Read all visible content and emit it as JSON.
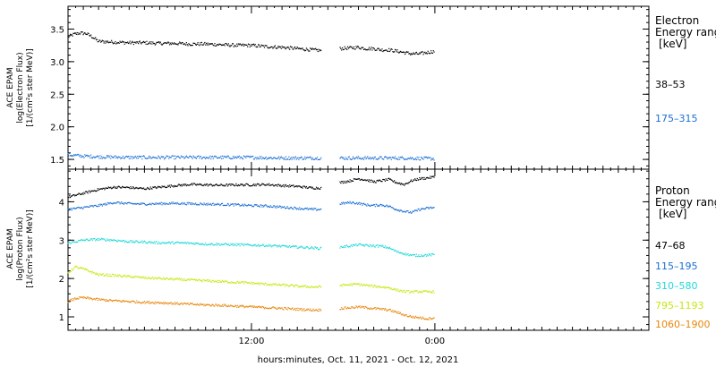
{
  "chart_data": [
    {
      "type": "scatter",
      "panel": "electron",
      "ylabel_lines": [
        "ACE EPAM",
        "log(Electron Flux)",
        "[1/(cm²s ster MeV)]"
      ],
      "legend_title_lines": [
        "Electron",
        "Energy ranges",
        "[keV]"
      ],
      "ylim": [
        1.35,
        3.85
      ],
      "yticks": [
        1.5,
        2.0,
        2.5,
        3.0,
        3.5
      ],
      "ytick_labels": [
        "1.5",
        "2.0",
        "2.5",
        "3.0",
        "3.5"
      ],
      "gap_hours": [
        16.6,
        17.8
      ],
      "series": [
        {
          "name": "38–53",
          "color": "#000000",
          "x": [
            0.0,
            0.4,
            0.8,
            1.2,
            1.6,
            2.0,
            3.0,
            4.0,
            5.0,
            6.0,
            7.0,
            8.0,
            9.0,
            10.0,
            11.0,
            12.0,
            13.0,
            14.0,
            15.0,
            16.0,
            16.6,
            17.8,
            18.5,
            19.0,
            19.5,
            20.0,
            20.5,
            21.0,
            21.5,
            22.0,
            22.5,
            23.0,
            23.5,
            24.0
          ],
          "y": [
            3.38,
            3.42,
            3.44,
            3.43,
            3.38,
            3.31,
            3.3,
            3.29,
            3.29,
            3.28,
            3.28,
            3.27,
            3.27,
            3.26,
            3.25,
            3.25,
            3.23,
            3.22,
            3.2,
            3.18,
            3.17,
            3.2,
            3.21,
            3.22,
            3.2,
            3.2,
            3.18,
            3.18,
            3.16,
            3.14,
            3.12,
            3.12,
            3.14,
            3.16
          ]
        },
        {
          "name": "175–315",
          "color": "#1a6fd4",
          "x": [
            0.0,
            1.0,
            2.0,
            4.0,
            6.0,
            8.0,
            10.0,
            12.0,
            14.0,
            16.0,
            16.6,
            17.8,
            20.0,
            22.0,
            24.0
          ],
          "y": [
            1.57,
            1.55,
            1.54,
            1.53,
            1.53,
            1.53,
            1.53,
            1.53,
            1.52,
            1.52,
            1.52,
            1.52,
            1.52,
            1.52,
            1.51
          ]
        }
      ]
    },
    {
      "type": "scatter",
      "panel": "proton",
      "ylabel_lines": [
        "ACE EPAM",
        "log(Proton Flux)",
        "[1/(cm²s ster MeV)]"
      ],
      "legend_title_lines": [
        "Proton",
        "Energy ranges",
        "[keV]"
      ],
      "ylim": [
        0.65,
        4.85
      ],
      "yticks": [
        1,
        2,
        3,
        4
      ],
      "ytick_labels": [
        "1",
        "2",
        "3",
        "4"
      ],
      "gap_hours": [
        16.6,
        17.8
      ],
      "series": [
        {
          "name": "47–68",
          "color": "#000000",
          "x": [
            0.0,
            1.0,
            2.0,
            3.0,
            4.0,
            5.0,
            6.0,
            7.0,
            8.0,
            9.0,
            10.0,
            11.0,
            12.0,
            13.0,
            14.0,
            15.0,
            16.0,
            16.6,
            17.8,
            18.5,
            19.0,
            19.5,
            20.0,
            20.5,
            21.0,
            21.5,
            22.0,
            22.5,
            23.0,
            23.5,
            24.0
          ],
          "y": [
            4.12,
            4.22,
            4.32,
            4.38,
            4.37,
            4.34,
            4.38,
            4.42,
            4.45,
            4.44,
            4.43,
            4.44,
            4.44,
            4.45,
            4.42,
            4.4,
            4.36,
            4.36,
            4.5,
            4.55,
            4.6,
            4.57,
            4.52,
            4.55,
            4.58,
            4.5,
            4.45,
            4.55,
            4.6,
            4.62,
            4.65
          ]
        },
        {
          "name": "115–195",
          "color": "#1a6fd4",
          "x": [
            0.0,
            1.0,
            2.0,
            3.0,
            4.0,
            5.0,
            6.0,
            7.0,
            8.0,
            9.0,
            10.0,
            11.0,
            12.0,
            13.0,
            14.0,
            15.0,
            16.0,
            16.6,
            17.8,
            18.5,
            19.0,
            19.5,
            20.0,
            20.5,
            21.0,
            21.5,
            22.0,
            22.5,
            23.0,
            23.5,
            24.0
          ],
          "y": [
            3.8,
            3.85,
            3.9,
            3.98,
            3.95,
            3.94,
            3.95,
            3.96,
            3.95,
            3.94,
            3.93,
            3.92,
            3.9,
            3.89,
            3.86,
            3.83,
            3.8,
            3.8,
            3.95,
            3.98,
            3.96,
            3.92,
            3.9,
            3.92,
            3.88,
            3.8,
            3.75,
            3.72,
            3.8,
            3.83,
            3.85
          ]
        },
        {
          "name": "310–580",
          "color": "#22d8d8",
          "x": [
            0.0,
            1.0,
            2.0,
            3.0,
            4.0,
            5.0,
            6.0,
            7.0,
            8.0,
            9.0,
            10.0,
            11.0,
            12.0,
            13.0,
            14.0,
            15.0,
            16.0,
            16.6,
            17.8,
            18.5,
            19.0,
            19.5,
            20.0,
            20.5,
            21.0,
            21.5,
            22.0,
            22.5,
            23.0,
            23.5,
            24.0
          ],
          "y": [
            2.92,
            3.0,
            3.02,
            3.0,
            2.96,
            2.95,
            2.93,
            2.93,
            2.92,
            2.9,
            2.89,
            2.88,
            2.87,
            2.86,
            2.84,
            2.82,
            2.8,
            2.78,
            2.82,
            2.85,
            2.88,
            2.86,
            2.85,
            2.84,
            2.8,
            2.7,
            2.65,
            2.6,
            2.6,
            2.61,
            2.62
          ]
        },
        {
          "name": "795–1193",
          "color": "#c8e612",
          "x": [
            0.0,
            0.5,
            1.0,
            2.0,
            3.0,
            4.0,
            5.0,
            6.0,
            7.0,
            8.0,
            9.0,
            10.0,
            11.0,
            12.0,
            13.0,
            14.0,
            15.0,
            16.0,
            16.6,
            17.8,
            18.5,
            19.0,
            19.5,
            20.0,
            20.5,
            21.0,
            21.5,
            22.0,
            22.5,
            23.0,
            23.5,
            24.0
          ],
          "y": [
            2.15,
            2.3,
            2.25,
            2.1,
            2.08,
            2.05,
            2.02,
            2.0,
            1.98,
            1.96,
            1.94,
            1.92,
            1.9,
            1.88,
            1.85,
            1.83,
            1.8,
            1.78,
            1.78,
            1.82,
            1.84,
            1.85,
            1.82,
            1.8,
            1.78,
            1.76,
            1.7,
            1.66,
            1.65,
            1.66,
            1.65,
            1.66
          ]
        },
        {
          "name": "1060–1900",
          "color": "#e8860a",
          "x": [
            0.0,
            0.5,
            1.0,
            2.0,
            3.0,
            4.0,
            5.0,
            6.0,
            7.0,
            8.0,
            9.0,
            10.0,
            11.0,
            12.0,
            13.0,
            14.0,
            15.0,
            16.0,
            16.6,
            17.8,
            18.5,
            19.0,
            19.5,
            20.0,
            20.5,
            21.0,
            21.5,
            22.0,
            22.5,
            23.0,
            23.5,
            24.0
          ],
          "y": [
            1.4,
            1.48,
            1.5,
            1.45,
            1.42,
            1.4,
            1.38,
            1.37,
            1.35,
            1.33,
            1.31,
            1.3,
            1.28,
            1.26,
            1.24,
            1.22,
            1.2,
            1.18,
            1.18,
            1.22,
            1.24,
            1.26,
            1.24,
            1.22,
            1.2,
            1.18,
            1.12,
            1.05,
            1.0,
            0.98,
            0.95,
            0.98
          ]
        }
      ]
    }
  ],
  "xaxis": {
    "label": "hours:minutes, Oct. 11, 2021 - Oct. 12, 2021",
    "xlim_hours": [
      0.0,
      38.0
    ],
    "ticks_hours": [
      12.0,
      24.0
    ],
    "tick_labels": [
      "12:00",
      "0:00"
    ],
    "minor_step_hours": 0.5
  }
}
